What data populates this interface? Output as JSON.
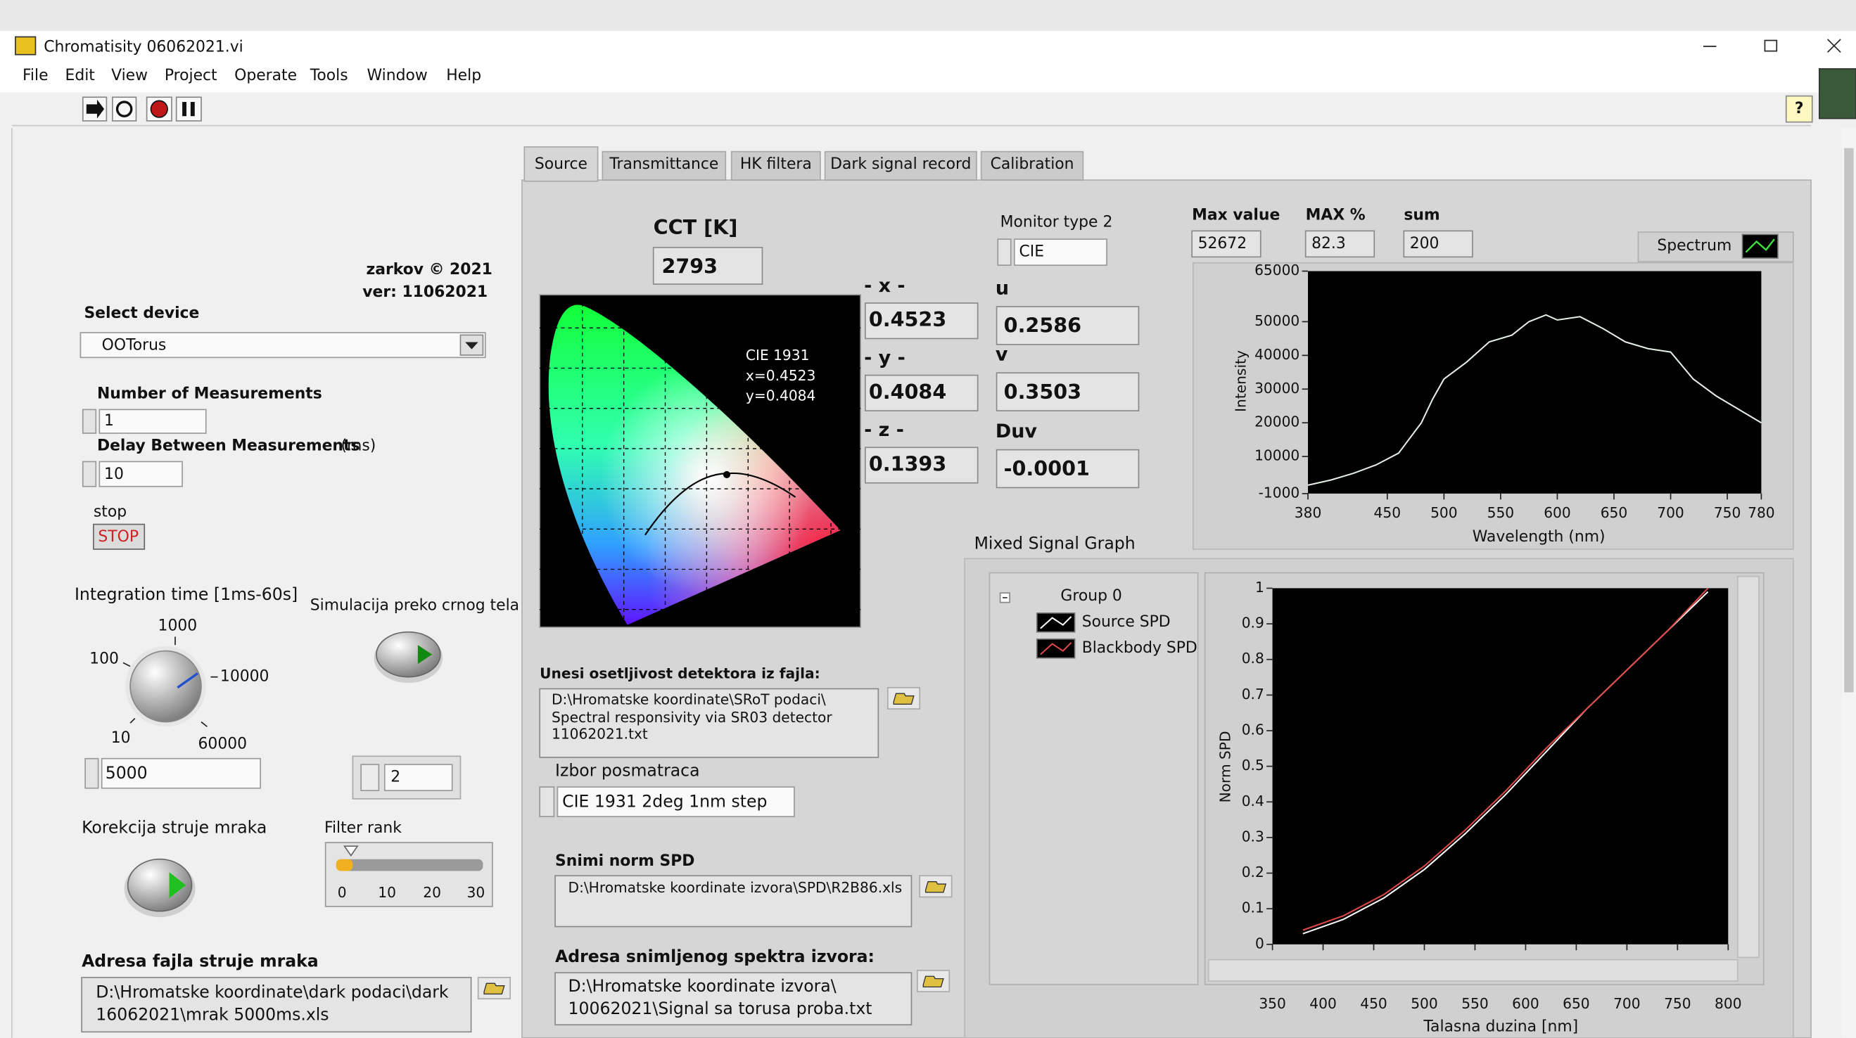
{
  "window": {
    "title": "Chromatisity 06062021.vi",
    "menu": [
      "File",
      "Edit",
      "View",
      "Project",
      "Operate",
      "Tools",
      "Window",
      "Help"
    ]
  },
  "left_panel": {
    "author": "zarkov © 2021",
    "version": "ver: 11062021",
    "select_device": {
      "label": "Select device",
      "value": "OOTorus"
    },
    "measurements": {
      "label": "Number of Measurements",
      "value": "1"
    },
    "delay": {
      "label": "Delay Between Measurements",
      "unit": "(ms)",
      "value": "10"
    },
    "stop": {
      "label": "stop",
      "button": "STOP"
    },
    "integration": {
      "label": "Integration time [1ms-60s]",
      "dial_labels": [
        "10",
        "100",
        "1000",
        "10000",
        "60000"
      ],
      "value": "5000"
    },
    "simulation": {
      "label": "Simulacija preko crnog tela",
      "value": "2"
    },
    "dark_correction": {
      "label": "Korekcija struje mraka"
    },
    "filter_rank": {
      "label": "Filter rank",
      "ticks": [
        "0",
        "10",
        "20",
        "30"
      ]
    },
    "dark_file": {
      "label": "Adresa fajla struje mraka",
      "lines": [
        "D:\\Hromatske koordinate\\dark podaci\\dark",
        "16062021\\mrak 5000ms.xls"
      ]
    }
  },
  "tabs": [
    "Source",
    "Transmittance",
    "HK filtera",
    "Dark signal record",
    "Calibration"
  ],
  "source_tab": {
    "cct": {
      "label": "CCT [K]",
      "value": "2793"
    },
    "xyz": [
      {
        "label": "- x -",
        "value": "0.4523"
      },
      {
        "label": "- y -",
        "value": "0.4084"
      },
      {
        "label": "- z -",
        "value": "0.1393"
      }
    ],
    "cie_annotation": [
      "CIE 1931",
      "x=0.4523",
      "y=0.4084"
    ],
    "monitor": {
      "label": "Monitor type 2",
      "value": "CIE"
    },
    "uv": [
      {
        "label": "u",
        "value": "0.2586"
      },
      {
        "label": "v",
        "value": "0.3503"
      },
      {
        "label": "Duv",
        "value": "-0.0001"
      }
    ],
    "stats": [
      {
        "label": "Max value",
        "value": "52672"
      },
      {
        "label": "MAX %",
        "value": "82.3"
      },
      {
        "label": "sum",
        "value": "200"
      }
    ],
    "detector_file": {
      "label": "Unesi osetljivost detektora iz fajla:",
      "lines": [
        "D:\\Hromatske koordinate\\SRoT podaci\\",
        "Spectral responsivity via SR03 detector",
        "11062021.txt"
      ]
    },
    "observer": {
      "label": "Izbor posmatraca",
      "value": "CIE 1931 2deg 1nm step"
    },
    "norm_spd": {
      "label": "Snimi norm SPD",
      "value": "D:\\Hromatske koordinate izvora\\SPD\\R2B86.xls"
    },
    "source_file": {
      "label": "Adresa snimljenog spektra izvora:",
      "lines": [
        "D:\\Hromatske koordinate izvora\\",
        "10062021\\Signal sa torusa proba.txt"
      ]
    }
  },
  "spectrum_graph": {
    "type": "line",
    "y_label": "Intensity",
    "x_label": "Wavelength (nm)",
    "xlim": [
      380,
      780
    ],
    "ylim": [
      -1000,
      65000
    ],
    "xticks": [
      380,
      450,
      500,
      550,
      600,
      650,
      700,
      750,
      780
    ],
    "yticks": [
      -1000,
      10000,
      20000,
      30000,
      40000,
      50000,
      65000
    ],
    "x": [
      380,
      400,
      420,
      440,
      460,
      480,
      490,
      500,
      520,
      540,
      560,
      575,
      590,
      600,
      620,
      640,
      660,
      680,
      700,
      720,
      740,
      760,
      780
    ],
    "series": [
      {
        "name": "Spectrum",
        "color": "#e6f0e6",
        "values": [
          1500,
          3000,
          5000,
          7500,
          11000,
          20000,
          27000,
          33000,
          38000,
          44000,
          46000,
          50000,
          52000,
          50500,
          51500,
          48000,
          44000,
          42000,
          41000,
          33000,
          28000,
          24000,
          20000
        ]
      }
    ]
  },
  "mixed_signal_graph": {
    "type": "line",
    "title": "Mixed Signal Graph",
    "group": "Group 0",
    "y_label": "Norm SPD",
    "x_label": "Talasna duzina [nm]",
    "xlim": [
      350,
      800
    ],
    "ylim": [
      0,
      1
    ],
    "xticks": [
      350,
      400,
      450,
      500,
      550,
      600,
      650,
      700,
      750,
      800
    ],
    "yticks": [
      0,
      0.1,
      0.2,
      0.3,
      0.4,
      0.5,
      0.6,
      0.7,
      0.8,
      0.9,
      1
    ],
    "x": [
      380,
      420,
      460,
      500,
      540,
      580,
      620,
      660,
      700,
      740,
      780
    ],
    "series": [
      {
        "name": "Source SPD",
        "color": "#ffffff",
        "values": [
          0.03,
          0.07,
          0.13,
          0.21,
          0.31,
          0.42,
          0.54,
          0.66,
          0.77,
          0.88,
          0.99
        ]
      },
      {
        "name": "Blackbody SPD",
        "color": "#e04848",
        "values": [
          0.04,
          0.08,
          0.14,
          0.22,
          0.32,
          0.43,
          0.55,
          0.66,
          0.77,
          0.88,
          1.0
        ]
      }
    ]
  }
}
